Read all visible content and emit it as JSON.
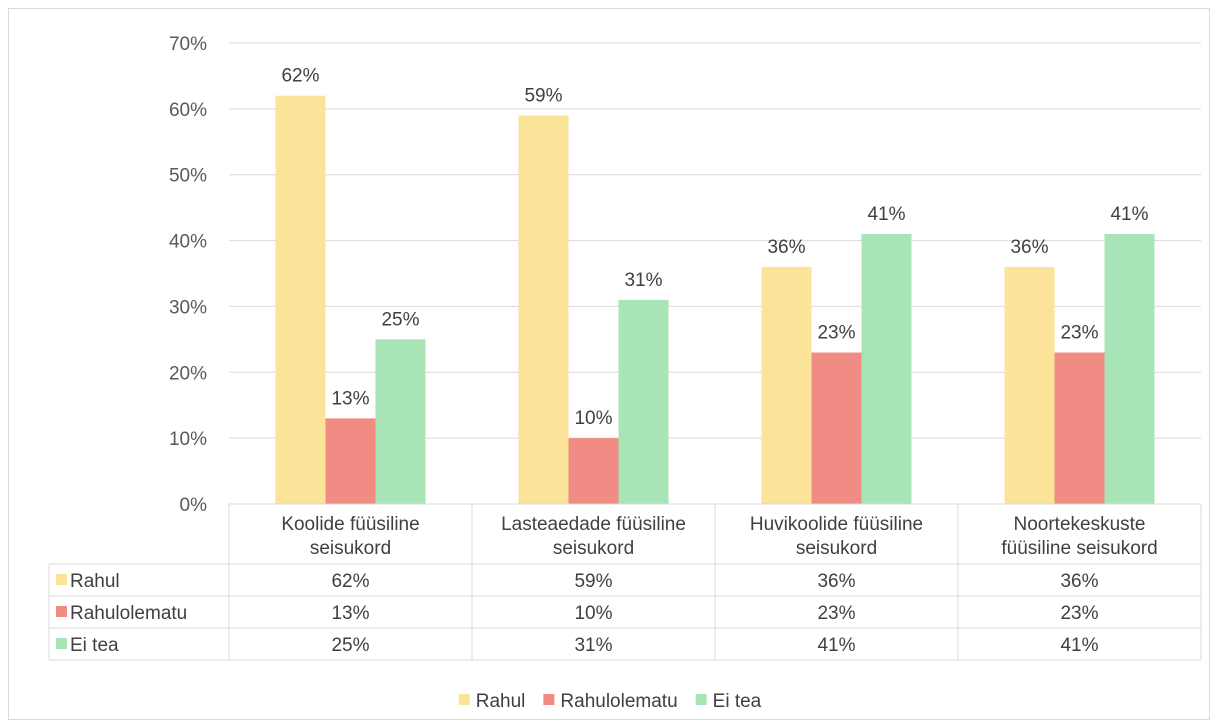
{
  "chart_data": {
    "type": "bar",
    "categories": [
      [
        "Koolide füüsiline",
        "seisukord"
      ],
      [
        "Lasteaedade füüsiline",
        "seisukord"
      ],
      [
        "Huvikoolide füüsiline",
        "seisukord"
      ],
      [
        "Noortekeskuste",
        "füüsiline seisukord"
      ]
    ],
    "series": [
      {
        "name": "Rahul",
        "color": "#fbe39a",
        "values": [
          62,
          59,
          36,
          36
        ]
      },
      {
        "name": "Rahulolematu",
        "color": "#f08c84",
        "values": [
          13,
          10,
          23,
          23
        ]
      },
      {
        "name": "Ei tea",
        "color": "#a8e4b6",
        "values": [
          25,
          31,
          41,
          41
        ]
      }
    ],
    "ylim": [
      0,
      70
    ],
    "yticks": [
      0,
      10,
      20,
      30,
      40,
      50,
      60,
      70
    ],
    "value_suffix": "%",
    "grid": true,
    "data_table": true,
    "legend_position": "bottom"
  }
}
